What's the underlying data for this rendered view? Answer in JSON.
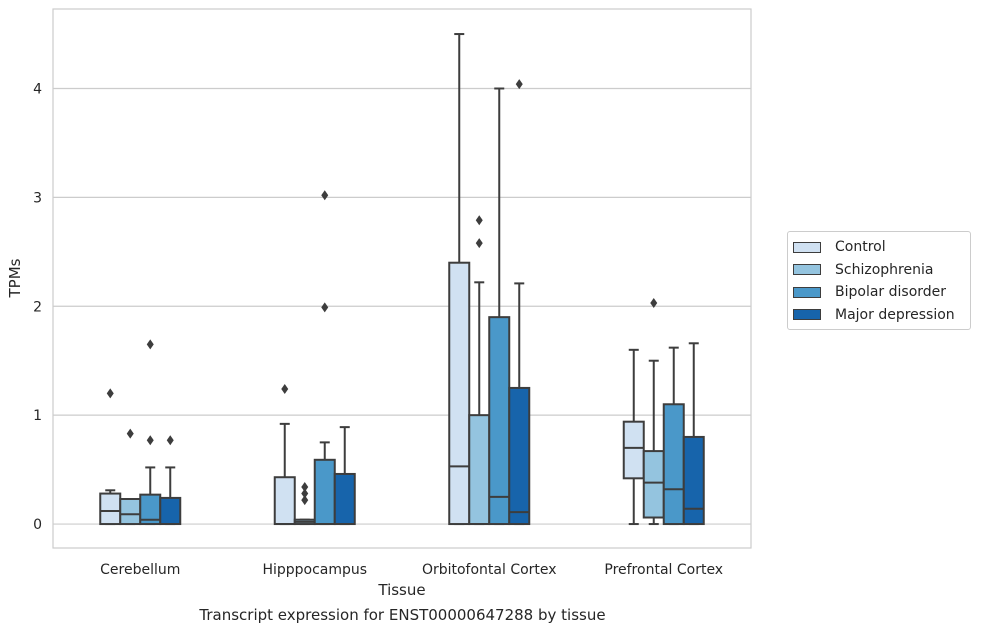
{
  "chart_data": {
    "type": "box",
    "title": "Transcript expression for ENST00000647288 by tissue",
    "xlabel": "Tissue",
    "ylabel": "TPMs",
    "ylim": [
      -0.22,
      4.73
    ],
    "yticks": [
      0,
      1,
      2,
      3,
      4
    ],
    "grid": "horizontal",
    "legend_position": "right",
    "categories": [
      "Cerebellum",
      "Hipppocampus",
      "Orbitofontal Cortex",
      "Prefrontal Cortex"
    ],
    "series": [
      {
        "name": "Control",
        "color": "#d0e1f2",
        "boxes": [
          {
            "whislo": 0,
            "q1": 0,
            "med": 0.12,
            "q3": 0.28,
            "whishi": 0.31,
            "fliers": [
              1.2
            ]
          },
          {
            "whislo": 0,
            "q1": 0,
            "med": 0,
            "q3": 0.43,
            "whishi": 0.92,
            "fliers": [
              1.24
            ]
          },
          {
            "whislo": 0,
            "q1": 0,
            "med": 0.53,
            "q3": 2.4,
            "whishi": 4.5,
            "fliers": []
          },
          {
            "whislo": 0,
            "q1": 0.42,
            "med": 0.7,
            "q3": 0.94,
            "whishi": 1.6,
            "fliers": []
          }
        ]
      },
      {
        "name": "Schizophrenia",
        "color": "#94c4df",
        "boxes": [
          {
            "whislo": 0,
            "q1": 0,
            "med": 0.09,
            "q3": 0.23,
            "whishi": 0.23,
            "fliers": [
              0.83
            ]
          },
          {
            "whislo": 0,
            "q1": 0,
            "med": 0.02,
            "q3": 0.04,
            "whishi": 0.04,
            "fliers": [
              0.22,
              0.28,
              0.34
            ]
          },
          {
            "whislo": 0,
            "q1": 0,
            "med": 0,
            "q3": 1.0,
            "whishi": 2.22,
            "fliers": [
              2.58,
              2.79
            ]
          },
          {
            "whislo": 0,
            "q1": 0.06,
            "med": 0.38,
            "q3": 0.67,
            "whishi": 1.5,
            "fliers": [
              2.03
            ]
          }
        ]
      },
      {
        "name": "Bipolar disorder",
        "color": "#4a98c9",
        "boxes": [
          {
            "whislo": 0,
            "q1": 0,
            "med": 0.04,
            "q3": 0.27,
            "whishi": 0.52,
            "fliers": [
              0.77,
              1.65
            ]
          },
          {
            "whislo": 0,
            "q1": 0,
            "med": 0,
            "q3": 0.59,
            "whishi": 0.75,
            "fliers": [
              1.99,
              3.02
            ]
          },
          {
            "whislo": 0,
            "q1": 0,
            "med": 0.25,
            "q3": 1.9,
            "whishi": 4.0,
            "fliers": []
          },
          {
            "whislo": 0,
            "q1": 0,
            "med": 0.32,
            "q3": 1.1,
            "whishi": 1.62,
            "fliers": []
          }
        ]
      },
      {
        "name": "Major depression",
        "color": "#1764ab",
        "boxes": [
          {
            "whislo": 0,
            "q1": 0,
            "med": 0,
            "q3": 0.24,
            "whishi": 0.52,
            "fliers": [
              0.77
            ]
          },
          {
            "whislo": 0,
            "q1": 0,
            "med": 0,
            "q3": 0.46,
            "whishi": 0.89,
            "fliers": []
          },
          {
            "whislo": 0,
            "q1": 0,
            "med": 0.11,
            "q3": 1.25,
            "whishi": 2.21,
            "fliers": [
              4.04
            ]
          },
          {
            "whislo": 0,
            "q1": 0,
            "med": 0.14,
            "q3": 0.8,
            "whishi": 1.66,
            "fliers": []
          }
        ]
      }
    ]
  }
}
